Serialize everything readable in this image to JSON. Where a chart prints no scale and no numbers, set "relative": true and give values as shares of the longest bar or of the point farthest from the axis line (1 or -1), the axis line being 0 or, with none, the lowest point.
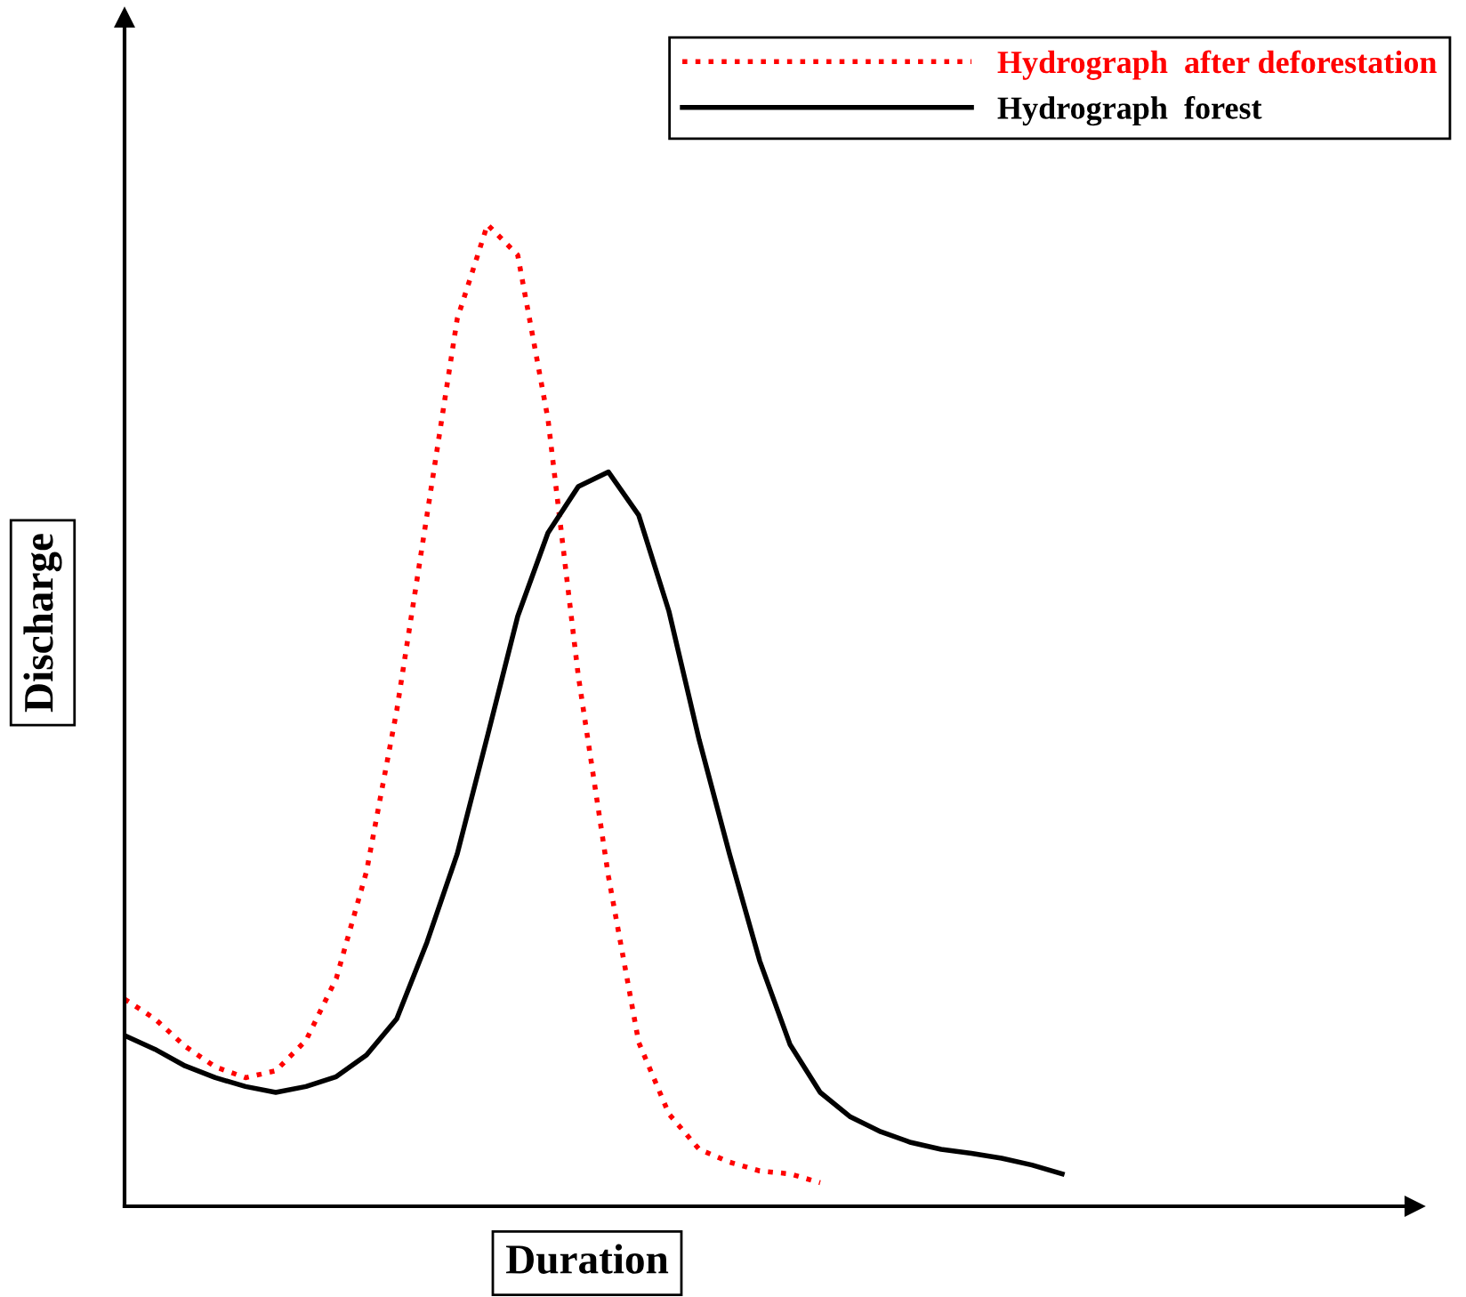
{
  "chart_data": {
    "type": "line",
    "relative": true,
    "xlabel": "Duration",
    "ylabel": "Discharge",
    "legend": "top right",
    "categories": [
      null,
      null,
      null,
      null,
      null,
      null,
      null,
      null,
      null,
      null,
      null,
      null,
      null,
      null,
      null,
      null,
      null,
      null,
      null,
      null,
      null,
      null,
      null,
      null,
      null,
      null,
      null,
      null,
      null,
      null,
      null,
      null
    ],
    "series": [
      {
        "name": "Hydrograph  after deforestation",
        "color": "#ff0000",
        "line_style": "dotted",
        "values": [
          0.211,
          0.191,
          0.163,
          0.142,
          0.131,
          0.138,
          0.169,
          0.232,
          0.341,
          0.505,
          0.704,
          0.904,
          1.0,
          0.969,
          0.802,
          0.541,
          0.336,
          0.167,
          0.094,
          0.058,
          0.045,
          0.036,
          0.033,
          0.024,
          null,
          null,
          null,
          null,
          null,
          null,
          null,
          null
        ]
      },
      {
        "name": "Hydrograph  forest",
        "color": "#000000",
        "line_style": "solid",
        "values": [
          0.174,
          0.16,
          0.143,
          0.131,
          0.122,
          0.116,
          0.122,
          0.132,
          0.154,
          0.191,
          0.269,
          0.359,
          0.479,
          0.601,
          0.686,
          0.733,
          0.748,
          0.704,
          0.606,
          0.475,
          0.359,
          0.25,
          0.165,
          0.116,
          0.091,
          0.076,
          0.065,
          0.058,
          0.054,
          0.049,
          0.042,
          0.033
        ]
      }
    ]
  }
}
